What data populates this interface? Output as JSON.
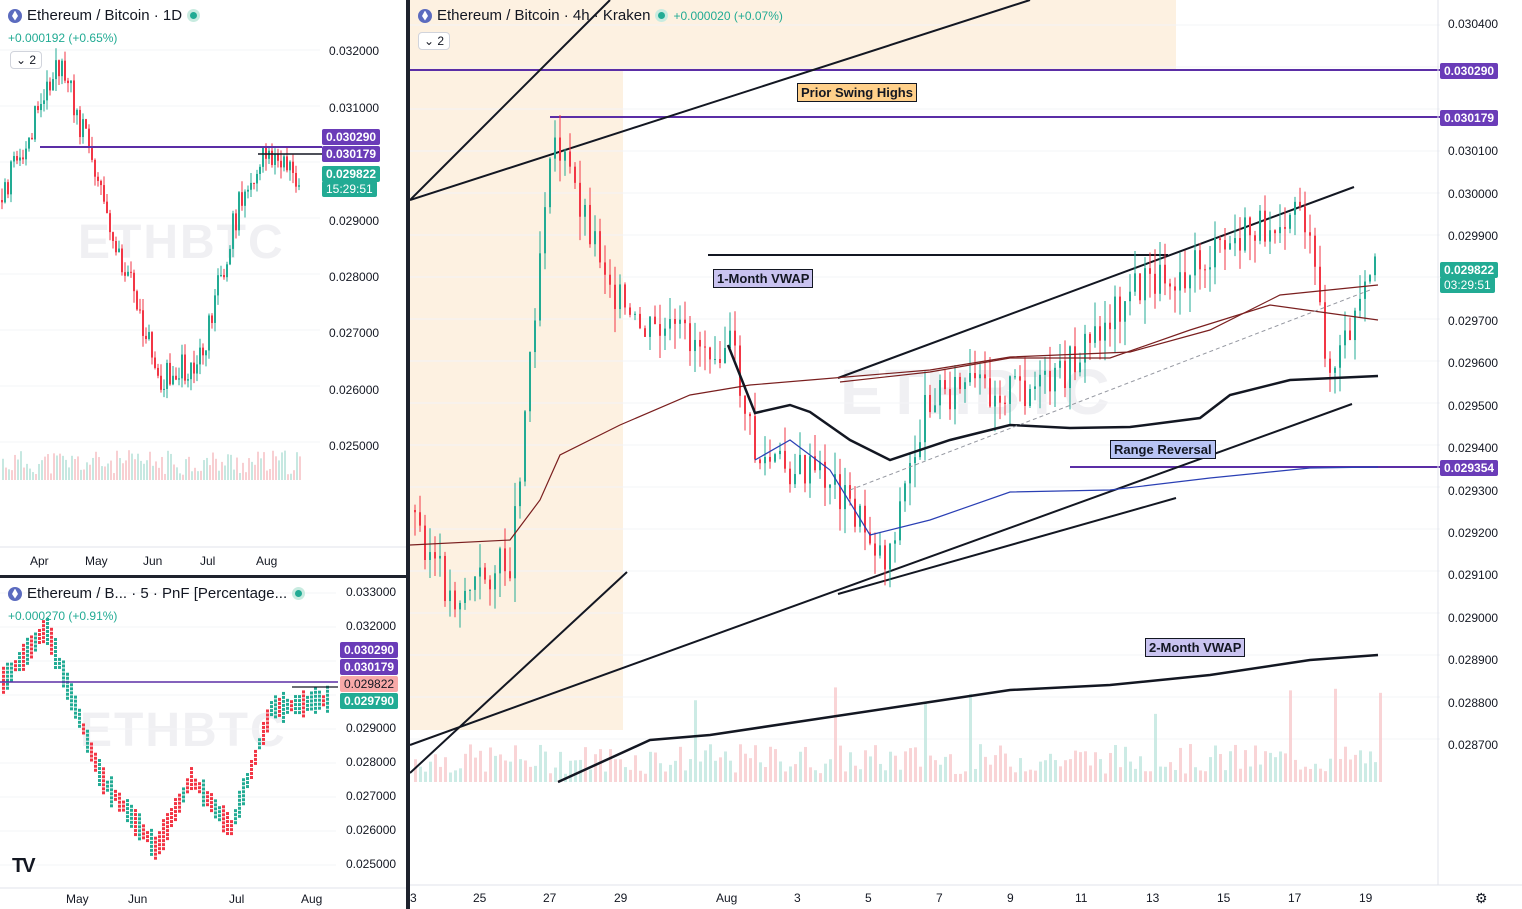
{
  "colors": {
    "up": "#22ab94",
    "down": "#f23645",
    "level_line": "#5b2ea6",
    "level_tag": "#6a3cb8",
    "price_tag": "#22ab94",
    "pnf_price_tag": "#f7a9a8",
    "highlight_band": "#fdf1e1",
    "vwap1": "#7a1f1f",
    "vwap_blue": "#2a3fb4",
    "annot_yellow": "#ffd08a",
    "annot_purple": "#c9c3f0",
    "annot_blue": "#b8c4f5"
  },
  "top_left": {
    "title": "Ethereum / Bitcoin · 1D",
    "change": "+0.000192 (+0.65%)",
    "collapse": "2",
    "watermark": "ETHBTC",
    "price_axis": [
      "0.032000",
      "0.031000",
      "0.029000",
      "0.028000",
      "0.027000",
      "0.026000",
      "0.025000"
    ],
    "time_axis": [
      "Apr",
      "May",
      "Jun",
      "Jul",
      "Aug"
    ],
    "level_tags": [
      "0.030290",
      "0.030179"
    ],
    "price_tag": "0.029822",
    "countdown": "15:29:51"
  },
  "bottom_left": {
    "title": "Ethereum / B... · 5 · PnF [Percentage...",
    "change": "+0.000270 (+0.91%)",
    "watermark": "ETHBTC",
    "price_axis": [
      "0.033000",
      "0.032000",
      "0.029000",
      "0.028000",
      "0.027000",
      "0.026000",
      "0.025000"
    ],
    "time_axis": [
      "May",
      "Jun",
      "Jul",
      "Aug"
    ],
    "level_tags": [
      "0.030290",
      "0.030179"
    ],
    "price_tag": "0.029822",
    "price_tag2": "0.029790",
    "logo": "TV"
  },
  "main": {
    "title": "Ethereum / Bitcoin · 4h · Kraken",
    "change": "+0.000020 (+0.07%)",
    "collapse": "2",
    "watermark": "ETHBTC",
    "price_axis": [
      "0.030400",
      "0.030100",
      "0.030000",
      "0.029900",
      "0.029700",
      "0.029600",
      "0.029500",
      "0.029400",
      "0.029300",
      "0.029200",
      "0.029100",
      "0.029000",
      "0.028900",
      "0.028800",
      "0.028700"
    ],
    "time_axis": [
      "3",
      "25",
      "27",
      "29",
      "Aug",
      "3",
      "5",
      "7",
      "9",
      "11",
      "13",
      "15",
      "17",
      "19"
    ],
    "level_tags": [
      "0.030290",
      "0.030179",
      "0.029354"
    ],
    "price_tag": "0.029822",
    "countdown": "03:29:51",
    "annotations": {
      "swing_highs": "Prior Swing Highs",
      "vwap_1m": "1-Month VWAP",
      "range_reversal": "Range Reversal",
      "vwap_2m": "2-Month VWAP"
    }
  }
}
